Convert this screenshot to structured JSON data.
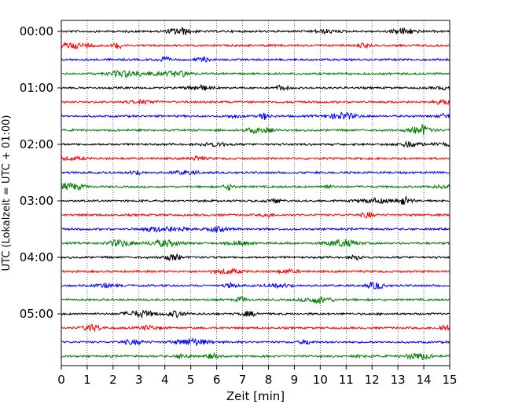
{
  "chart_data": {
    "type": "line",
    "subtype": "helicorder",
    "title": "",
    "xlabel": "Zeit  [min]",
    "ylabel": "UTC (Lokalzeit = UTC + 01:00)",
    "xlim": [
      0,
      15
    ],
    "x_ticks": [
      "0",
      "1",
      "2",
      "3",
      "4",
      "5",
      "6",
      "7",
      "8",
      "9",
      "10",
      "11",
      "12",
      "13",
      "14",
      "15"
    ],
    "y_ticks": [
      "00:00",
      "01:00",
      "02:00",
      "03:00",
      "04:00",
      "05:00"
    ],
    "traces_per_hour": 4,
    "trace_count": 24,
    "trace_colors": [
      "#000000",
      "#ff0000",
      "#0000ff",
      "#007f00"
    ],
    "grid": "vertical dotted at each minute",
    "legend": "none"
  }
}
